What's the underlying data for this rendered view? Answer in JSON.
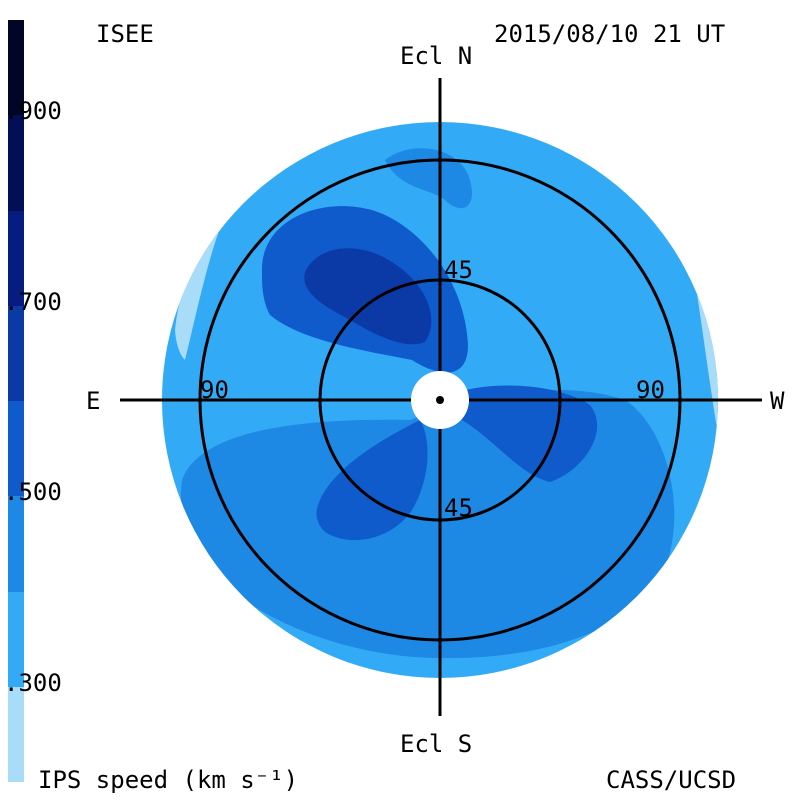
{
  "chart_data": {
    "type": "heatmap",
    "title": "ISEE",
    "timestamp": "2015/08/10 21 UT",
    "credit": "CASS/UCSD",
    "colorbar": {
      "label": "IPS speed (km s⁻¹)",
      "tick_labels": [
        "900",
        "700",
        "500",
        "300"
      ],
      "tick_values": [
        900,
        700,
        500,
        300
      ],
      "range": [
        200,
        1000
      ],
      "levels": [
        {
          "min": 200,
          "max": 300,
          "color": "#a8dcf8"
        },
        {
          "min": 300,
          "max": 400,
          "color": "#33aaf5"
        },
        {
          "min": 400,
          "max": 500,
          "color": "#1e88e5"
        },
        {
          "min": 500,
          "max": 600,
          "color": "#0f5bcc"
        },
        {
          "min": 600,
          "max": 700,
          "color": "#0b3aa6"
        },
        {
          "min": 700,
          "max": 800,
          "color": "#061c80"
        },
        {
          "min": 800,
          "max": 900,
          "color": "#030f55"
        },
        {
          "min": 900,
          "max": 1000,
          "color": "#010526"
        }
      ]
    },
    "axes": {
      "north": "Ecl N",
      "south": "Ecl S",
      "east": "E",
      "west": "W",
      "ring_labels": [
        {
          "text": "45",
          "elongation_deg": 45,
          "where": "north"
        },
        {
          "text": "45",
          "elongation_deg": 45,
          "where": "south"
        },
        {
          "text": "90",
          "elongation_deg": 90,
          "where": "east"
        },
        {
          "text": "90",
          "elongation_deg": 90,
          "where": "west"
        }
      ],
      "max_elongation_deg": 120
    },
    "regions": [
      {
        "name": "background",
        "speed_kms": 350
      },
      {
        "name": "NE high-speed lobe",
        "speed_kms": 550
      },
      {
        "name": "NE lobe core",
        "speed_kms": 650
      },
      {
        "name": "southern band",
        "speed_kms": 450
      },
      {
        "name": "SW lobe",
        "speed_kms": 550
      },
      {
        "name": "SE lobe",
        "speed_kms": 550
      },
      {
        "name": "northern cap",
        "speed_kms": 450
      },
      {
        "name": "eastern limb",
        "speed_kms": 250
      },
      {
        "name": "western limb",
        "speed_kms": 250
      }
    ]
  }
}
